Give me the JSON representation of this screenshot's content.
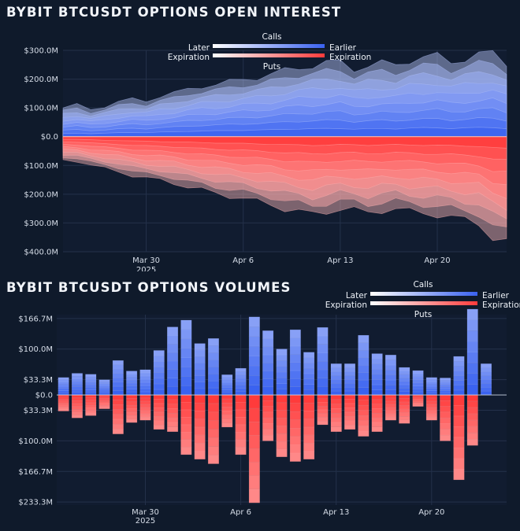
{
  "chart_data": [
    {
      "type": "area",
      "title": "BYBIT BTCUSDT OPTIONS OPEN INTEREST",
      "legend": {
        "calls_label": "Calls",
        "puts_label": "Puts",
        "left_top": "Later",
        "left_bottom": "Expiration",
        "right_top": "Earlier",
        "right_bottom": "Expiration",
        "position": "top-center"
      },
      "colors": {
        "calls": "#3a62f0",
        "puts": "#ff3b3b",
        "gradient_start": "#ffffff"
      },
      "y_tick_labels": [
        "$300.0M",
        "$200.0M",
        "$100.0M",
        "$0.0",
        "$100.0M",
        "$200.0M",
        "$300.0M",
        "$400.0M"
      ],
      "y_tick_values": [
        300,
        200,
        100,
        0,
        -100,
        -200,
        -300,
        -400
      ],
      "ylim": [
        -400,
        300
      ],
      "y_unit": "USD millions (puts plotted below zero)",
      "x_range": [
        "2025-03-24",
        "2025-04-25"
      ],
      "x_ticks": [
        {
          "date": "2025-03-30",
          "label": "Mar 30",
          "sub": "2025"
        },
        {
          "date": "2025-04-06",
          "label": "Apr 6",
          "sub": ""
        },
        {
          "date": "2025-04-13",
          "label": "Apr 13",
          "sub": ""
        },
        {
          "date": "2025-04-20",
          "label": "Apr 20",
          "sub": ""
        }
      ],
      "grid": true,
      "calls_total": {
        "dates": [
          "2025-03-24",
          "2025-03-25",
          "2025-03-26",
          "2025-03-27",
          "2025-03-28",
          "2025-03-29",
          "2025-03-30",
          "2025-03-31",
          "2025-04-01",
          "2025-04-02",
          "2025-04-03",
          "2025-04-04",
          "2025-04-05",
          "2025-04-06",
          "2025-04-07",
          "2025-04-08",
          "2025-04-09",
          "2025-04-10",
          "2025-04-11",
          "2025-04-12",
          "2025-04-13",
          "2025-04-14",
          "2025-04-15",
          "2025-04-16",
          "2025-04-17",
          "2025-04-18",
          "2025-04-19",
          "2025-04-20",
          "2025-04-21",
          "2025-04-22",
          "2025-04-23",
          "2025-04-24",
          "2025-04-25"
        ],
        "values": [
          100,
          110,
          95,
          105,
          120,
          130,
          125,
          140,
          150,
          165,
          175,
          180,
          190,
          200,
          205,
          215,
          230,
          240,
          245,
          255,
          260,
          235,
          245,
          255,
          250,
          265,
          275,
          280,
          260,
          270,
          285,
          290,
          255
        ]
      },
      "puts_total": {
        "dates": [
          "2025-03-24",
          "2025-03-25",
          "2025-03-26",
          "2025-03-27",
          "2025-03-28",
          "2025-03-29",
          "2025-03-30",
          "2025-03-31",
          "2025-04-01",
          "2025-04-02",
          "2025-04-03",
          "2025-04-04",
          "2025-04-05",
          "2025-04-06",
          "2025-04-07",
          "2025-04-08",
          "2025-04-09",
          "2025-04-10",
          "2025-04-11",
          "2025-04-12",
          "2025-04-13",
          "2025-04-14",
          "2025-04-15",
          "2025-04-16",
          "2025-04-17",
          "2025-04-18",
          "2025-04-19",
          "2025-04-20",
          "2025-04-21",
          "2025-04-22",
          "2025-04-23",
          "2025-04-24",
          "2025-04-25"
        ],
        "values": [
          -80,
          -85,
          -100,
          -110,
          -120,
          -135,
          -145,
          -150,
          -160,
          -175,
          -185,
          -195,
          -205,
          -215,
          -225,
          -235,
          -250,
          -260,
          -270,
          -260,
          -250,
          -255,
          -265,
          -255,
          -250,
          -260,
          -265,
          -270,
          -280,
          -290,
          -300,
          -350,
          -370
        ]
      }
    },
    {
      "type": "bar",
      "title": "BYBIT BTCUSDT OPTIONS VOLUMES",
      "legend": {
        "calls_label": "Calls",
        "puts_label": "Puts",
        "left_top": "Later",
        "left_bottom": "Expiration",
        "right_top": "Earlier",
        "right_bottom": "Expiration",
        "position": "top-right"
      },
      "colors": {
        "calls": "#3a62f0",
        "puts": "#ff3b3b",
        "gradient_start": "#ffffff"
      },
      "y_tick_labels": [
        "$166.7M",
        "$100.0M",
        "$33.3M",
        "$0.0",
        "$33.3M",
        "$100.0M",
        "$166.7M",
        "$233.3M"
      ],
      "y_tick_values": [
        166.7,
        100,
        33.3,
        0,
        -33.3,
        -100,
        -166.7,
        -233.3
      ],
      "ylim": [
        -240,
        175
      ],
      "x_ticks": [
        {
          "date": "2025-03-30",
          "label": "Mar 30",
          "sub": "2025"
        },
        {
          "date": "2025-04-06",
          "label": "Apr 6",
          "sub": ""
        },
        {
          "date": "2025-04-13",
          "label": "Apr 13",
          "sub": ""
        },
        {
          "date": "2025-04-20",
          "label": "Apr 20",
          "sub": ""
        }
      ],
      "grid": true,
      "dates": [
        "2025-03-24",
        "2025-03-25",
        "2025-03-26",
        "2025-03-27",
        "2025-03-28",
        "2025-03-29",
        "2025-03-30",
        "2025-03-31",
        "2025-04-01",
        "2025-04-02",
        "2025-04-03",
        "2025-04-04",
        "2025-04-05",
        "2025-04-06",
        "2025-04-07",
        "2025-04-08",
        "2025-04-09",
        "2025-04-10",
        "2025-04-11",
        "2025-04-12",
        "2025-04-13",
        "2025-04-14",
        "2025-04-15",
        "2025-04-16",
        "2025-04-17",
        "2025-04-18",
        "2025-04-19",
        "2025-04-20",
        "2025-04-21",
        "2025-04-22",
        "2025-04-23",
        "2025-04-24",
        "2025-04-25"
      ],
      "calls": [
        38,
        47,
        45,
        33,
        75,
        52,
        55,
        97,
        148,
        163,
        112,
        123,
        44,
        58,
        170,
        140,
        100,
        142,
        93,
        147,
        68,
        68,
        130,
        90,
        87,
        60,
        53,
        38,
        37,
        84,
        187,
        68,
        0
      ],
      "puts": [
        -35,
        -50,
        -45,
        -30,
        -85,
        -60,
        -55,
        -75,
        -80,
        -130,
        -140,
        -150,
        -70,
        -130,
        -235,
        -100,
        -135,
        -145,
        -140,
        -65,
        -80,
        -75,
        -90,
        -80,
        -55,
        -62,
        -25,
        -55,
        -100,
        -185,
        -110,
        0,
        0
      ]
    }
  ]
}
